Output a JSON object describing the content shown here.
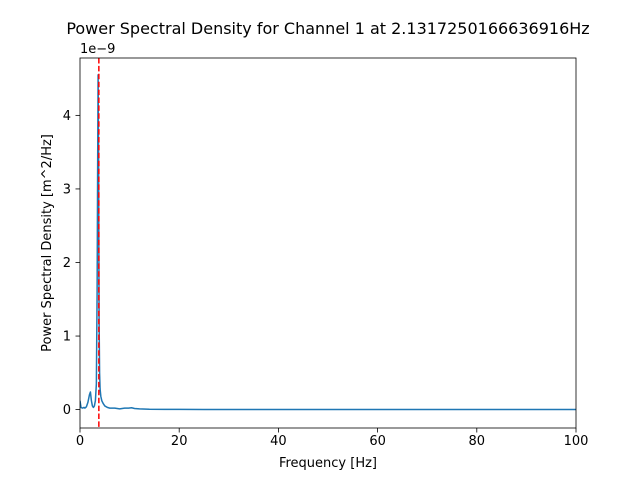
{
  "chart_data": {
    "type": "line",
    "title": "Power Spectral Density for Channel 1 at 2.1317250166636916Hz",
    "xlabel": "Frequency [Hz]",
    "ylabel": "Power Spectral Density [m^2/Hz]",
    "y_offset_label": "1e−9",
    "xlim": [
      0,
      100
    ],
    "ylim": [
      -0.25,
      4.78
    ],
    "x_ticks": [
      0,
      20,
      40,
      60,
      80,
      100
    ],
    "y_ticks": [
      0,
      1,
      2,
      3,
      4
    ],
    "grid": false,
    "legend": "none",
    "series": [
      {
        "color": "#1f77b4",
        "x": [
          0,
          0.2,
          0.5,
          0.8,
          1.0,
          1.3,
          1.6,
          1.9,
          2.1,
          2.3,
          2.5,
          2.7,
          2.9,
          3.1,
          3.3,
          3.45,
          3.55,
          3.65,
          3.75,
          3.85,
          3.95,
          4.05,
          4.2,
          4.4,
          4.7,
          5.0,
          5.5,
          6.0,
          7.0,
          8.0,
          9.0,
          9.8,
          10.4,
          11.0,
          12.0,
          14.0,
          17.0,
          20.0,
          25.0,
          30.0,
          40.0,
          50.0,
          60.0,
          70.0,
          80.0,
          90.0,
          100.0
        ],
        "values": [
          0.12,
          0.03,
          0.02,
          0.03,
          0.02,
          0.04,
          0.1,
          0.2,
          0.24,
          0.12,
          0.05,
          0.03,
          0.05,
          0.12,
          0.35,
          1.6,
          3.2,
          4.55,
          3.4,
          1.2,
          0.5,
          0.28,
          0.18,
          0.12,
          0.08,
          0.05,
          0.03,
          0.02,
          0.02,
          0.01,
          0.02,
          0.02,
          0.025,
          0.015,
          0.01,
          0.005,
          0.004,
          0.003,
          0.002,
          0.002,
          0.001,
          0.001,
          0.001,
          0.001,
          0.001,
          0.001,
          0.001
        ]
      }
    ],
    "vlines": [
      {
        "x": 3.8,
        "color": "#ff0000",
        "style": "dashed"
      }
    ]
  }
}
